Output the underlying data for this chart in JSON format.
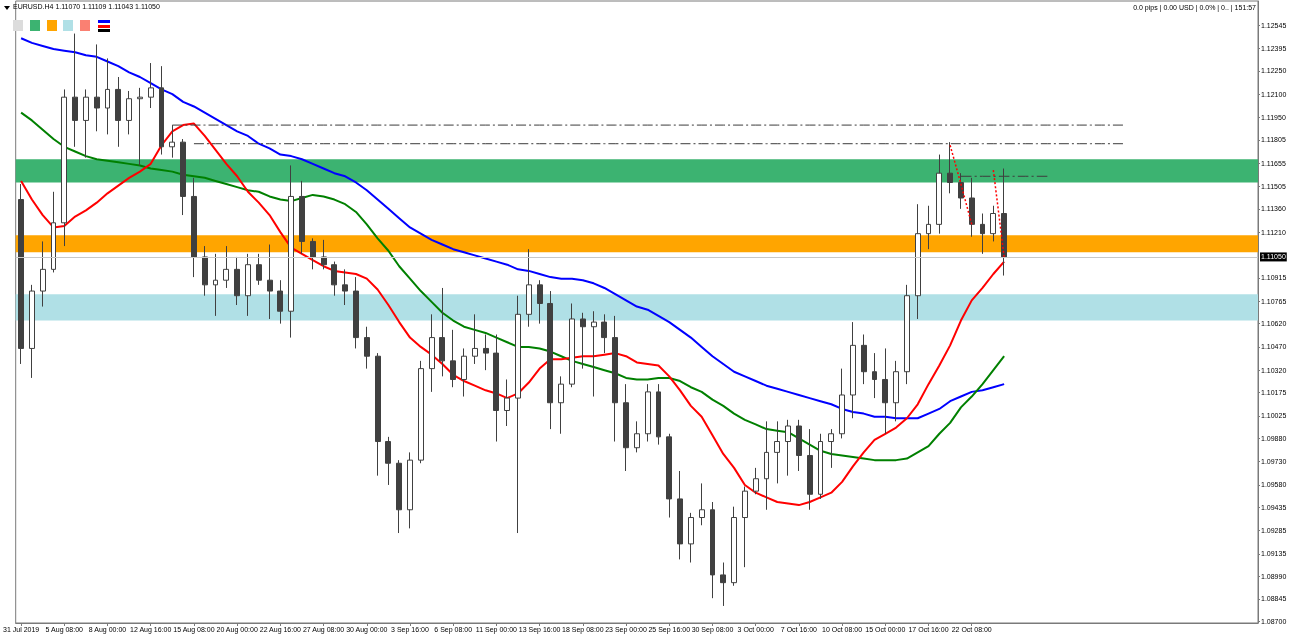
{
  "chart_data": {
    "type": "candlestick",
    "title": "EURUSD.H4 1.11070 1.11109 1.11043 1.11050",
    "annotations": [
      "0.0 pips | 0.00 USD | 0.0% | 0.. | 151:57"
    ],
    "categories": [
      "31 Jul 2019",
      null,
      null,
      null,
      "5 Aug 08:00",
      null,
      null,
      null,
      "8 Aug 00:00",
      null,
      null,
      null,
      "12 Aug 16:00",
      null,
      null,
      null,
      "15 Aug 08:00",
      null,
      null,
      null,
      "20 Aug 00:00",
      null,
      null,
      null,
      "22 Aug 16:00",
      null,
      null,
      null,
      "27 Aug 08:00",
      null,
      null,
      null,
      "30 Aug 00:00",
      null,
      null,
      null,
      "3 Sep 16:00",
      null,
      null,
      null,
      "6 Sep 08:00",
      null,
      null,
      null,
      "11 Sep 00:00",
      null,
      null,
      null,
      "13 Sep 16:00",
      null,
      null,
      null,
      "18 Sep 08:00",
      null,
      null,
      null,
      "23 Sep 00:00",
      null,
      null,
      null,
      "25 Sep 16:00",
      null,
      null,
      null,
      "30 Sep 08:00",
      null,
      null,
      null,
      "3 Oct 00:00",
      null,
      null,
      null,
      "7 Oct 16:00",
      null,
      null,
      null,
      "10 Oct 08:00",
      null,
      null,
      null,
      "15 Oct 00:00",
      null,
      null,
      null,
      "17 Oct 16:00",
      null,
      null,
      null,
      "22 Oct 08:00",
      null,
      null,
      null,
      null,
      null,
      null,
      null,
      null,
      null,
      null,
      null,
      null,
      null,
      null,
      null,
      null,
      null,
      null,
      null,
      null,
      null,
      null,
      null,
      null,
      null,
      null
    ],
    "ohlc": [
      [
        1.1142,
        1.1152,
        1.1036,
        1.1046
      ],
      [
        1.1046,
        1.1087,
        1.1027,
        1.1083
      ],
      [
        1.1083,
        1.1115,
        1.1073,
        1.1097
      ],
      [
        1.1097,
        1.1147,
        1.1095,
        1.1127
      ],
      [
        1.1127,
        1.1213,
        1.1112,
        1.1208
      ],
      [
        1.1208,
        1.1249,
        1.1176,
        1.1193
      ],
      [
        1.1193,
        1.1213,
        1.1169,
        1.1208
      ],
      [
        1.1208,
        1.1242,
        1.1186,
        1.1201
      ],
      [
        1.1201,
        1.1233,
        1.1184,
        1.1213
      ],
      [
        1.1213,
        1.1221,
        1.1176,
        1.1193
      ],
      [
        1.1193,
        1.1212,
        1.1184,
        1.1207
      ],
      [
        1.1207,
        1.1214,
        1.1164,
        1.1208
      ],
      [
        1.1208,
        1.123,
        1.1201,
        1.1214
      ],
      [
        1.1214,
        1.1228,
        1.1171,
        1.1176
      ],
      [
        1.1176,
        1.119,
        1.1169,
        1.1179
      ],
      [
        1.1179,
        1.1181,
        1.1132,
        1.1144
      ],
      [
        1.1144,
        1.1156,
        1.1092,
        1.1105
      ],
      [
        1.1105,
        1.1112,
        1.108,
        1.1087
      ],
      [
        1.1087,
        1.1107,
        1.1067,
        1.109
      ],
      [
        1.109,
        1.1112,
        1.1085,
        1.1097
      ],
      [
        1.1097,
        1.1105,
        1.1074,
        1.108
      ],
      [
        1.108,
        1.1107,
        1.1067,
        1.11
      ],
      [
        1.11,
        1.1107,
        1.1087,
        1.109
      ],
      [
        1.109,
        1.1113,
        1.1065,
        1.1083
      ],
      [
        1.1083,
        1.109,
        1.1062,
        1.107
      ],
      [
        1.107,
        1.1164,
        1.1053,
        1.1144
      ],
      [
        1.1144,
        1.1154,
        1.1107,
        1.1115
      ],
      [
        1.1115,
        1.1117,
        1.1097,
        1.1105
      ],
      [
        1.1105,
        1.1116,
        1.1097,
        1.11
      ],
      [
        1.11,
        1.1102,
        1.108,
        1.1087
      ],
      [
        1.1087,
        1.1097,
        1.1074,
        1.1083
      ],
      [
        1.1083,
        1.1092,
        1.1046,
        1.1053
      ],
      [
        1.1053,
        1.106,
        1.1033,
        1.1041
      ],
      [
        1.1041,
        1.1043,
        1.0964,
        1.0986
      ],
      [
        1.0986,
        1.0989,
        1.0958,
        1.0972
      ],
      [
        1.0972,
        1.0974,
        1.0927,
        1.0942
      ],
      [
        1.0942,
        1.0979,
        1.093,
        1.0974
      ],
      [
        1.0974,
        1.1038,
        1.0972,
        1.1033
      ],
      [
        1.1033,
        1.1068,
        1.1018,
        1.1053
      ],
      [
        1.1053,
        1.1085,
        1.1028,
        1.1038
      ],
      [
        1.1038,
        1.1058,
        1.1021,
        1.1026
      ],
      [
        1.1026,
        1.1046,
        1.1015,
        1.1041
      ],
      [
        1.1041,
        1.1068,
        1.1036,
        1.1046
      ],
      [
        1.1046,
        1.1055,
        1.1032,
        1.1043
      ],
      [
        1.1043,
        1.1055,
        1.0986,
        1.1006
      ],
      [
        1.1006,
        1.1026,
        1.0996,
        1.1014
      ],
      [
        1.1014,
        1.108,
        1.0927,
        1.1068
      ],
      [
        1.1068,
        1.111,
        1.106,
        1.1087
      ],
      [
        1.1087,
        1.109,
        1.1062,
        1.1075
      ],
      [
        1.1075,
        1.1083,
        1.0994,
        1.1011
      ],
      [
        1.1011,
        1.1028,
        1.0991,
        1.1023
      ],
      [
        1.1023,
        1.1075,
        1.1021,
        1.1065
      ],
      [
        1.1065,
        1.1069,
        1.1033,
        1.106
      ],
      [
        1.106,
        1.107,
        1.1015,
        1.1063
      ],
      [
        1.1063,
        1.1068,
        1.1043,
        1.1053
      ],
      [
        1.1053,
        1.1067,
        1.0986,
        1.1011
      ],
      [
        1.1011,
        1.1023,
        1.0967,
        1.0982
      ],
      [
        1.0982,
        1.0999,
        1.0979,
        1.0991
      ],
      [
        1.0991,
        1.1023,
        1.0986,
        1.1018
      ],
      [
        1.1018,
        1.1023,
        1.0984,
        1.0989
      ],
      [
        1.0989,
        1.0991,
        1.0937,
        1.0949
      ],
      [
        1.0949,
        1.0967,
        1.091,
        1.092
      ],
      [
        1.092,
        1.094,
        1.0908,
        1.0937
      ],
      [
        1.0937,
        1.0959,
        1.0932,
        1.0942
      ],
      [
        1.0942,
        1.0947,
        1.0885,
        1.09
      ],
      [
        1.09,
        1.0908,
        1.088,
        1.0895
      ],
      [
        1.0895,
        1.0944,
        1.0893,
        1.0937
      ],
      [
        1.0937,
        1.0957,
        1.0905,
        1.0954
      ],
      [
        1.0954,
        1.0969,
        1.0952,
        1.0962
      ],
      [
        1.0962,
        1.0999,
        1.0942,
        1.0979
      ],
      [
        1.0979,
        1.0999,
        1.0959,
        1.0986
      ],
      [
        1.0986,
        1.1,
        1.0964,
        1.0996
      ],
      [
        1.0996,
        1.1,
        1.0967,
        1.0977
      ],
      [
        1.0977,
        1.0994,
        1.0942,
        1.0952
      ],
      [
        1.0952,
        1.0991,
        1.0949,
        1.0986
      ],
      [
        1.0986,
        1.0994,
        1.0969,
        1.0991
      ],
      [
        1.0991,
        1.1033,
        1.0988,
        1.1016
      ],
      [
        1.1016,
        1.1063,
        1.1001,
        1.1048
      ],
      [
        1.1048,
        1.1055,
        1.1023,
        1.1031
      ],
      [
        1.1031,
        1.1043,
        1.1014,
        1.1026
      ],
      [
        1.1026,
        1.1046,
        1.0991,
        1.1011
      ],
      [
        1.1011,
        1.1038,
        1.0999,
        1.1031
      ],
      [
        1.1031,
        1.1087,
        1.1023,
        1.108
      ],
      [
        1.108,
        1.1139,
        1.1065,
        1.112
      ],
      [
        1.112,
        1.1138,
        1.111,
        1.1126
      ],
      [
        1.1126,
        1.1171,
        1.112,
        1.1159
      ],
      [
        1.1159,
        1.1179,
        1.1146,
        1.1153
      ],
      [
        1.1153,
        1.1159,
        1.1136,
        1.1143
      ],
      [
        1.1143,
        1.1156,
        1.1118,
        1.1126
      ],
      [
        1.1126,
        1.1133,
        1.1107,
        1.112
      ],
      [
        1.112,
        1.1138,
        1.1115,
        1.1133
      ],
      [
        1.1133,
        1.1162,
        1.1093,
        1.1105
      ],
      null,
      null,
      null,
      null,
      null,
      null,
      null,
      null,
      null,
      null,
      null,
      null,
      null,
      null,
      null,
      null,
      null,
      null,
      null,
      null,
      null,
      null,
      null
    ],
    "color": "#404040",
    "ylim": [
      1.0869,
      1.127
    ],
    "yticks": [
      1.12545,
      1.12395,
      {
        "value": 1.1225,
        "label": "1.12250"
      },
      {
        "value": 1.121,
        "label": "1.12100"
      },
      {
        "value": 1.1195,
        "label": "1.11950"
      },
      1.11805,
      1.11655,
      1.11505,
      {
        "value": 1.1136,
        "label": "1.11360"
      },
      {
        "value": 1.1121,
        "label": "1.11210"
      },
      1.10915,
      1.10765,
      {
        "value": 1.1062,
        "label": "1.10620"
      },
      {
        "value": 1.1047,
        "label": "1.10470"
      },
      {
        "value": 1.1032,
        "label": "1.10320"
      },
      1.10175,
      1.10025,
      {
        "value": 1.0988,
        "label": "1.09880"
      },
      {
        "value": 1.0973,
        "label": "1.09730"
      },
      {
        "value": 1.0958,
        "label": "1.09580"
      },
      1.09435,
      1.09285,
      1.09135,
      {
        "value": 1.0899,
        "label": "1.08990"
      },
      1.08845,
      {
        "value": 1.087,
        "label": "1.08700"
      }
    ],
    "ref_lines": [
      {
        "axis": "y",
        "value": 1.1105,
        "label": "1.11050",
        "color": "#c8c8c8"
      }
    ],
    "bands": [
      {
        "axis": "y",
        "from": 1.1064,
        "to": 1.1081,
        "color": "#b0e0e6"
      },
      {
        "axis": "y",
        "from": 1.1153,
        "to": 1.1168,
        "color": "#3cb371"
      },
      {
        "axis": "y",
        "from": 1.1108,
        "to": 1.1119,
        "color": "#ffa500"
      }
    ],
    "series": [
      {
        "type": "line",
        "color": "#3c3c3c",
        "line_style": "dashed",
        "values": [
          null,
          null,
          null,
          null,
          null,
          null,
          null,
          null,
          null,
          null,
          null,
          null,
          null,
          null,
          1.119,
          1.119,
          1.119,
          1.119,
          1.119,
          1.119,
          1.119,
          1.119,
          1.119,
          1.119,
          1.119,
          1.119,
          1.119,
          1.119,
          1.119,
          1.119,
          1.119,
          1.119,
          1.119,
          1.119,
          1.119,
          1.119,
          1.119,
          1.119,
          1.119,
          1.119,
          1.119,
          1.119,
          1.119,
          1.119,
          1.119,
          1.119,
          1.119,
          1.119,
          1.119,
          1.119,
          1.119,
          1.119,
          1.119,
          1.119,
          1.119,
          1.119,
          1.119,
          1.119,
          1.119,
          1.119,
          1.119,
          1.119,
          1.119,
          1.119,
          1.119,
          1.119,
          1.119,
          1.119,
          1.119,
          1.119,
          1.119,
          1.119,
          1.119,
          1.119,
          1.119,
          1.119,
          1.119,
          1.119,
          1.119,
          1.119,
          1.119,
          1.119,
          1.119,
          1.119,
          1.119,
          1.119,
          1.119,
          1.119,
          1.119,
          1.119,
          1.119,
          1.119,
          1.119,
          1.119,
          1.119,
          1.119,
          1.119,
          1.119,
          1.119,
          1.119,
          1.119,
          1.119,
          1.119,
          null,
          null,
          null,
          null,
          null,
          null,
          null,
          null,
          null,
          null,
          null,
          null
        ]
      },
      {
        "type": "line",
        "color": "#3c3c3c",
        "line_style": "dashed",
        "values": [
          null,
          null,
          null,
          null,
          null,
          null,
          null,
          null,
          null,
          null,
          null,
          null,
          null,
          null,
          null,
          null,
          1.1178,
          1.1178,
          1.1178,
          1.1178,
          1.1178,
          1.1178,
          1.1178,
          1.1178,
          1.1178,
          1.1178,
          1.1178,
          1.1178,
          1.1178,
          1.1178,
          1.1178,
          1.1178,
          1.1178,
          1.1178,
          1.1178,
          1.1178,
          1.1178,
          1.1178,
          1.1178,
          1.1178,
          1.1178,
          1.1178,
          1.1178,
          1.1178,
          1.1178,
          1.1178,
          1.1178,
          1.1178,
          1.1178,
          1.1178,
          1.1178,
          1.1178,
          1.1178,
          1.1178,
          1.1178,
          1.1178,
          1.1178,
          1.1178,
          1.1178,
          1.1178,
          1.1178,
          1.1178,
          1.1178,
          1.1178,
          1.1178,
          1.1178,
          1.1178,
          1.1178,
          1.1178,
          1.1178,
          1.1178,
          1.1178,
          1.1178,
          1.1178,
          1.1178,
          1.1178,
          1.1178,
          1.1178,
          1.1178,
          1.1178,
          1.1178,
          1.1178,
          1.1178,
          1.1178,
          1.1178,
          1.1178,
          1.1178,
          1.1178,
          1.1178,
          1.1178,
          1.1178,
          1.1178,
          1.1178,
          1.1178,
          1.1178,
          1.1178,
          1.1178,
          1.1178,
          1.1178,
          1.1178,
          1.1178,
          1.1178,
          1.1178,
          null,
          null,
          null,
          null,
          null,
          null,
          null,
          null,
          null,
          null,
          null,
          null
        ]
      },
      {
        "type": "line",
        "color": "#3c3c3c",
        "line_style": "dashed",
        "values": [
          null,
          null,
          null,
          null,
          null,
          null,
          null,
          null,
          null,
          null,
          null,
          null,
          null,
          null,
          null,
          null,
          null,
          null,
          null,
          null,
          null,
          null,
          null,
          null,
          null,
          null,
          null,
          null,
          null,
          null,
          null,
          null,
          null,
          null,
          null,
          null,
          null,
          null,
          null,
          null,
          null,
          null,
          null,
          null,
          null,
          null,
          null,
          null,
          null,
          null,
          null,
          null,
          null,
          null,
          null,
          null,
          null,
          null,
          null,
          null,
          null,
          null,
          null,
          null,
          null,
          null,
          null,
          null,
          null,
          null,
          null,
          null,
          null,
          null,
          null,
          null,
          null,
          null,
          null,
          null,
          null,
          null,
          null,
          null,
          null,
          null,
          null,
          1.1157,
          1.1157,
          1.1157,
          1.1157,
          1.1157,
          1.1157,
          1.1157,
          1.1157,
          1.1157,
          null,
          null,
          null,
          null,
          null,
          null,
          null,
          null,
          null,
          null,
          null,
          null,
          null,
          null,
          null,
          null,
          null,
          null,
          null
        ]
      },
      {
        "type": "line",
        "color": "#0000ff",
        "values": [
          1.1246,
          1.1243,
          1.1241,
          1.1239,
          1.1238,
          1.1237,
          1.1235,
          1.1234,
          1.1231,
          1.1228,
          1.1224,
          1.1221,
          1.1217,
          1.1213,
          1.121,
          1.1205,
          1.1202,
          1.1198,
          1.1194,
          1.119,
          1.1186,
          1.1183,
          1.1178,
          1.1175,
          1.1171,
          1.117,
          1.1168,
          1.1165,
          1.1162,
          1.1159,
          1.1157,
          1.1153,
          1.1148,
          1.1142,
          1.1136,
          1.113,
          1.1124,
          1.112,
          1.1116,
          1.1113,
          1.111,
          1.1108,
          1.1106,
          1.1104,
          1.1102,
          1.11,
          1.1097,
          1.1096,
          1.1094,
          1.1092,
          1.1091,
          1.1091,
          1.109,
          1.1088,
          1.1085,
          1.1081,
          1.1077,
          1.1073,
          1.1071,
          1.1067,
          1.1063,
          1.1058,
          1.1053,
          1.1047,
          1.1041,
          1.1036,
          1.1031,
          1.1028,
          1.1025,
          1.1022,
          1.102,
          1.1018,
          1.1016,
          1.1014,
          1.1012,
          1.101,
          1.1007,
          1.1005,
          1.1004,
          1.1002,
          1.1002,
          1.1001,
          1.1001,
          1.1001,
          1.1004,
          1.1007,
          1.1012,
          1.1015,
          1.1018,
          1.1019,
          1.1021,
          1.1023,
          null,
          null,
          null,
          null,
          null,
          null,
          null,
          null,
          null,
          null,
          null,
          null,
          null,
          null,
          null,
          null,
          null,
          null,
          null,
          null,
          null,
          null,
          null
        ]
      },
      {
        "type": "line",
        "color": "#008000",
        "values": [
          1.1198,
          1.1193,
          1.1187,
          1.1181,
          1.1176,
          1.1173,
          1.117,
          1.1168,
          1.1167,
          1.1166,
          1.1165,
          1.1164,
          1.1162,
          1.1161,
          1.116,
          1.1158,
          1.1157,
          1.1156,
          1.1154,
          1.1152,
          1.115,
          1.1148,
          1.1147,
          1.1144,
          1.1142,
          1.1141,
          1.1143,
          1.1145,
          1.1144,
          1.1142,
          1.1139,
          1.1134,
          1.1126,
          1.1117,
          1.1109,
          1.1099,
          1.1091,
          1.1083,
          1.1076,
          1.1069,
          1.1064,
          1.106,
          1.1058,
          1.1056,
          1.1053,
          1.105,
          1.1047,
          1.1047,
          1.1046,
          1.1044,
          1.1041,
          1.1038,
          1.1036,
          1.1034,
          1.1032,
          1.103,
          1.1027,
          1.1026,
          1.1026,
          1.1027,
          1.1027,
          1.1025,
          1.1021,
          1.1018,
          1.1013,
          1.1009,
          1.1004,
          1.1,
          1.0997,
          1.0994,
          1.0993,
          1.0992,
          1.0988,
          1.0984,
          1.098,
          1.0978,
          1.0977,
          1.0976,
          1.0975,
          1.0974,
          1.0974,
          1.0974,
          1.0975,
          1.0979,
          1.0983,
          1.0991,
          1.0998,
          1.1008,
          1.1015,
          1.1023,
          1.1032,
          1.1041,
          null,
          null,
          null,
          null,
          null,
          null,
          null,
          null,
          null,
          null,
          null,
          null,
          null,
          null,
          null,
          null,
          null,
          null,
          null,
          null,
          null,
          null,
          null
        ]
      },
      {
        "type": "line",
        "color": "#ff0000",
        "values": [
          1.1154,
          1.1142,
          1.1132,
          1.1124,
          1.1125,
          1.1131,
          1.1135,
          1.114,
          1.1146,
          1.1151,
          1.1156,
          1.116,
          1.1165,
          1.1177,
          1.1186,
          1.119,
          1.1191,
          1.1183,
          1.1174,
          1.1165,
          1.1157,
          1.1147,
          1.114,
          1.1132,
          1.1121,
          1.1111,
          1.1107,
          1.1103,
          1.1099,
          1.1096,
          1.1095,
          1.1094,
          1.1091,
          1.1084,
          1.1074,
          1.1063,
          1.1053,
          1.1047,
          1.1042,
          1.1036,
          1.1029,
          1.1025,
          1.1022,
          1.1019,
          1.1017,
          1.1014,
          1.1017,
          1.1024,
          1.1033,
          1.1039,
          1.1039,
          1.104,
          1.1041,
          1.1041,
          1.1042,
          1.1043,
          1.1041,
          1.1037,
          1.1036,
          1.1035,
          1.1028,
          1.1019,
          1.1009,
          1.1002,
          1.099,
          1.0978,
          1.0969,
          1.0958,
          1.0953,
          1.095,
          1.0947,
          1.0946,
          1.0945,
          1.0947,
          1.095,
          1.0953,
          1.096,
          1.097,
          1.0979,
          1.0987,
          1.0991,
          1.0995,
          1.1001,
          1.101,
          1.1023,
          1.1035,
          1.1048,
          1.1064,
          1.1077,
          1.1085,
          1.1094,
          1.1102,
          null,
          null,
          null,
          null,
          null,
          null,
          null,
          null,
          null,
          null,
          null,
          null,
          null,
          null,
          null,
          null,
          null,
          null,
          null,
          null,
          null,
          null,
          null
        ]
      },
      {
        "type": "line",
        "color": "#ff0000",
        "line_style": "dotted",
        "values": [
          null,
          null,
          null,
          null,
          null,
          null,
          null,
          null,
          null,
          null,
          null,
          null,
          null,
          null,
          null,
          null,
          null,
          null,
          null,
          null,
          null,
          null,
          null,
          null,
          null,
          null,
          null,
          null,
          null,
          null,
          null,
          null,
          null,
          null,
          null,
          null,
          null,
          null,
          null,
          null,
          null,
          null,
          null,
          null,
          null,
          null,
          null,
          null,
          null,
          null,
          null,
          null,
          null,
          null,
          null,
          null,
          null,
          null,
          null,
          null,
          null,
          null,
          null,
          null,
          null,
          null,
          null,
          null,
          null,
          null,
          null,
          null,
          null,
          null,
          null,
          null,
          null,
          null,
          null,
          null,
          null,
          null,
          null,
          null,
          null,
          null,
          1.1177,
          1.1152,
          1.1126,
          null,
          null,
          null,
          null,
          null,
          null,
          null,
          null,
          null,
          null,
          null,
          null,
          null,
          null,
          null,
          null,
          null,
          null,
          null,
          null,
          null,
          null,
          null,
          null,
          null,
          null
        ]
      },
      {
        "type": "line",
        "color": "#ff0000",
        "line_style": "dotted",
        "values": [
          null,
          null,
          null,
          null,
          null,
          null,
          null,
          null,
          null,
          null,
          null,
          null,
          null,
          null,
          null,
          null,
          null,
          null,
          null,
          null,
          null,
          null,
          null,
          null,
          null,
          null,
          null,
          null,
          null,
          null,
          null,
          null,
          null,
          null,
          null,
          null,
          null,
          null,
          null,
          null,
          null,
          null,
          null,
          null,
          null,
          null,
          null,
          null,
          null,
          null,
          null,
          null,
          null,
          null,
          null,
          null,
          null,
          null,
          null,
          null,
          null,
          null,
          null,
          null,
          null,
          null,
          null,
          null,
          null,
          null,
          null,
          null,
          null,
          null,
          null,
          null,
          null,
          null,
          null,
          null,
          null,
          null,
          null,
          null,
          null,
          null,
          null,
          null,
          null,
          null,
          1.1161,
          1.1105,
          null,
          null,
          null,
          null,
          null,
          null,
          null,
          null,
          null,
          null,
          null,
          null,
          null,
          null,
          null,
          null,
          null,
          null,
          null,
          null,
          null,
          null,
          null
        ]
      }
    ]
  }
}
